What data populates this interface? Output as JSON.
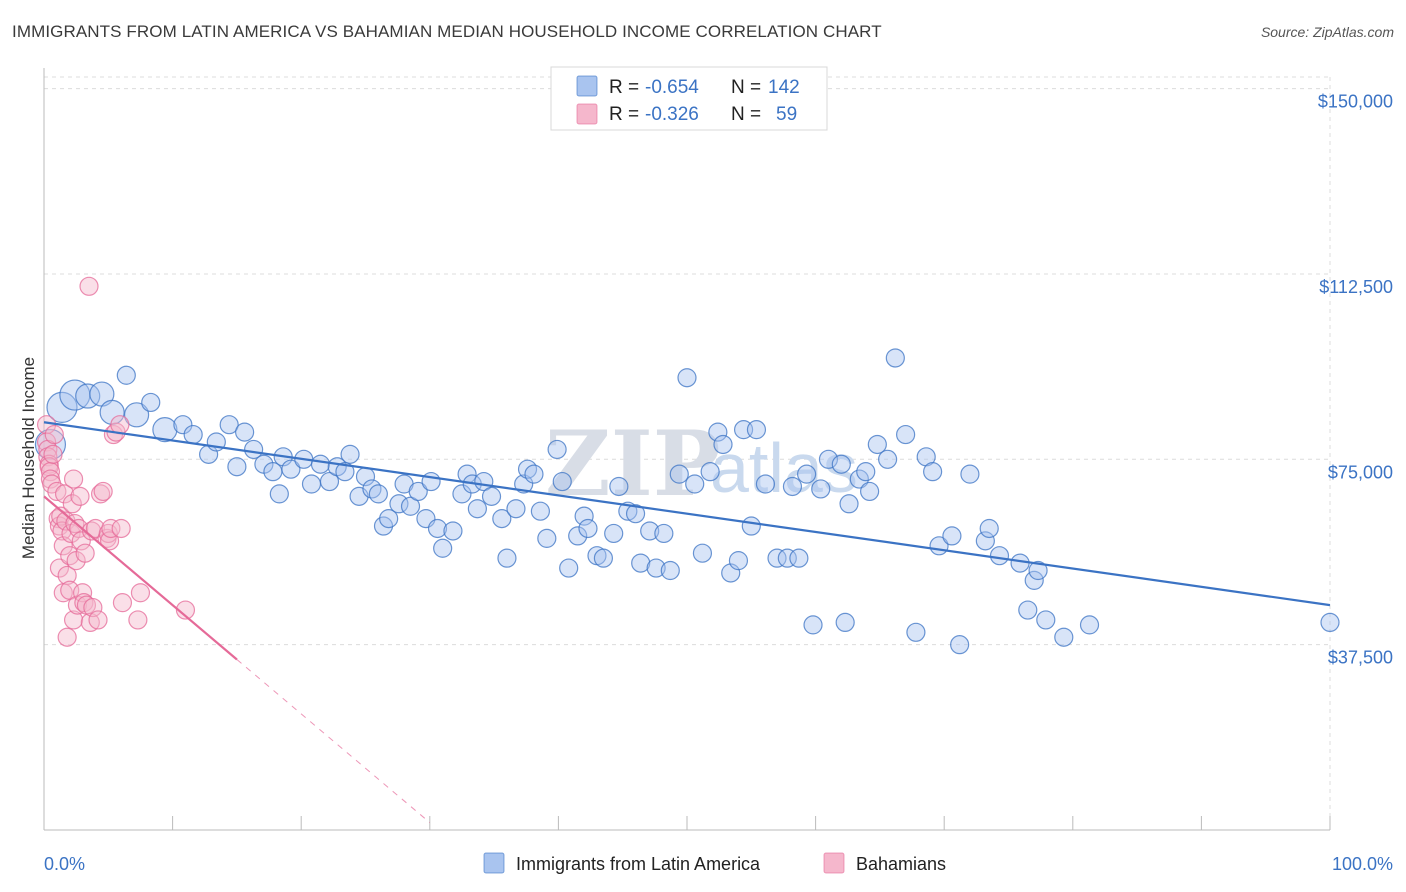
{
  "title": "IMMIGRANTS FROM LATIN AMERICA VS BAHAMIAN MEDIAN HOUSEHOLD INCOME CORRELATION CHART",
  "source": "Source: ZipAtlas.com",
  "watermark": {
    "zip": "ZIP",
    "atlas": "atlas"
  },
  "colors": {
    "blue": "#3b73c4",
    "blue_fill": "#a9c4ef",
    "pink": "#e56a98",
    "pink_fill": "#f5b7cc"
  },
  "chart_data": {
    "type": "scatter",
    "ylabel": "Median Household Income",
    "xlabel": "",
    "xlim": [
      0,
      100
    ],
    "ylim": [
      0,
      157000
    ],
    "x_tick_labels": [
      "0.0%",
      "100.0%"
    ],
    "y_ticks": [
      37500,
      75000,
      112500,
      150000
    ],
    "y_tick_labels": [
      "$37,500",
      "$75,000",
      "$112,500",
      "$150,000"
    ],
    "legend": {
      "placement": "top-center",
      "rows": [
        {
          "r_label": "R =",
          "r_value": "-0.654",
          "n_label": "N =",
          "n_value": "142"
        },
        {
          "r_label": "R =",
          "r_value": "-0.326",
          "n_label": "N =",
          "n_value": "59"
        }
      ]
    },
    "series": [
      {
        "name": "Immigrants from Latin America",
        "color": "#3b73c4",
        "trend": {
          "x": [
            0,
            100
          ],
          "y": [
            82500,
            45500
          ]
        },
        "points": [
          [
            0.5,
            78000,
            3
          ],
          [
            1.4,
            85500,
            3
          ],
          [
            2.4,
            88000,
            3
          ],
          [
            3.4,
            87800,
            2
          ],
          [
            4.5,
            88200,
            2
          ],
          [
            5.3,
            84500,
            2
          ],
          [
            6.4,
            92000,
            1
          ],
          [
            7.2,
            84000,
            2
          ],
          [
            8.3,
            86500,
            1
          ],
          [
            9.4,
            81000,
            2
          ],
          [
            10.8,
            82000,
            1
          ],
          [
            11.6,
            80000,
            1
          ],
          [
            12.8,
            76000,
            1
          ],
          [
            13.4,
            78500,
            1
          ],
          [
            14.4,
            82000,
            1
          ],
          [
            15.0,
            73500,
            1
          ],
          [
            15.6,
            80500,
            1
          ],
          [
            16.3,
            77000,
            1
          ],
          [
            17.1,
            74000,
            1
          ],
          [
            17.8,
            72500,
            1
          ],
          [
            18.3,
            68000,
            1
          ],
          [
            18.6,
            75500,
            1
          ],
          [
            19.2,
            73000,
            1
          ],
          [
            20.2,
            75000,
            1
          ],
          [
            20.8,
            70000,
            1
          ],
          [
            21.5,
            74000,
            1
          ],
          [
            22.2,
            70500,
            1
          ],
          [
            22.8,
            73500,
            1
          ],
          [
            23.4,
            72500,
            1
          ],
          [
            23.8,
            76000,
            1
          ],
          [
            24.5,
            67500,
            1
          ],
          [
            25.0,
            71500,
            1
          ],
          [
            25.5,
            69000,
            1
          ],
          [
            26.0,
            68000,
            1
          ],
          [
            26.4,
            61500,
            1
          ],
          [
            26.8,
            63000,
            1
          ],
          [
            27.6,
            66000,
            1
          ],
          [
            28.0,
            70000,
            1
          ],
          [
            28.5,
            65500,
            1
          ],
          [
            29.1,
            68500,
            1
          ],
          [
            29.7,
            63000,
            1
          ],
          [
            30.1,
            70500,
            1
          ],
          [
            30.6,
            61000,
            1
          ],
          [
            31.0,
            57000,
            1
          ],
          [
            31.8,
            60500,
            1
          ],
          [
            32.5,
            68000,
            1
          ],
          [
            32.9,
            72000,
            1
          ],
          [
            33.3,
            70000,
            1
          ],
          [
            33.7,
            65000,
            1
          ],
          [
            34.2,
            70500,
            1
          ],
          [
            34.8,
            67500,
            1
          ],
          [
            35.6,
            63000,
            1
          ],
          [
            36.0,
            55000,
            1
          ],
          [
            36.7,
            65000,
            1
          ],
          [
            37.3,
            70000,
            1
          ],
          [
            37.6,
            73000,
            1
          ],
          [
            38.1,
            72000,
            1
          ],
          [
            38.6,
            64500,
            1
          ],
          [
            39.1,
            59000,
            1
          ],
          [
            39.9,
            77000,
            1
          ],
          [
            40.3,
            70500,
            1
          ],
          [
            40.8,
            53000,
            1
          ],
          [
            41.5,
            59500,
            1
          ],
          [
            42.0,
            63500,
            1
          ],
          [
            42.3,
            61000,
            1
          ],
          [
            43.0,
            55500,
            1
          ],
          [
            43.5,
            55000,
            1
          ],
          [
            44.3,
            60000,
            1
          ],
          [
            44.7,
            69500,
            1
          ],
          [
            45.4,
            64500,
            1
          ],
          [
            46.0,
            64000,
            1
          ],
          [
            46.4,
            54000,
            1
          ],
          [
            47.1,
            60500,
            1
          ],
          [
            47.6,
            53000,
            1
          ],
          [
            48.2,
            60000,
            1
          ],
          [
            48.7,
            52500,
            1
          ],
          [
            49.4,
            72000,
            1
          ],
          [
            50.0,
            91500,
            1
          ],
          [
            50.6,
            70000,
            1
          ],
          [
            51.2,
            56000,
            1
          ],
          [
            51.8,
            72500,
            1
          ],
          [
            52.4,
            80500,
            1
          ],
          [
            52.8,
            78000,
            1
          ],
          [
            53.4,
            52000,
            1
          ],
          [
            54.0,
            54500,
            1
          ],
          [
            54.4,
            81000,
            1
          ],
          [
            55.0,
            61500,
            1
          ],
          [
            55.4,
            81000,
            1
          ],
          [
            56.1,
            70000,
            1
          ],
          [
            57.0,
            55000,
            1
          ],
          [
            57.8,
            55000,
            1
          ],
          [
            58.2,
            69500,
            1
          ],
          [
            58.7,
            55000,
            1
          ],
          [
            59.3,
            72000,
            1
          ],
          [
            59.8,
            41500,
            1
          ],
          [
            60.4,
            69000,
            1
          ],
          [
            61.0,
            75000,
            1
          ],
          [
            62.0,
            74000,
            1
          ],
          [
            62.3,
            42000,
            1
          ],
          [
            62.6,
            66000,
            1
          ],
          [
            63.4,
            71000,
            1
          ],
          [
            63.9,
            72500,
            1
          ],
          [
            64.2,
            68500,
            1
          ],
          [
            64.8,
            78000,
            1
          ],
          [
            65.6,
            75000,
            1
          ],
          [
            66.2,
            95500,
            1
          ],
          [
            67.0,
            80000,
            1
          ],
          [
            67.8,
            40000,
            1
          ],
          [
            68.6,
            75500,
            1
          ],
          [
            69.1,
            72500,
            1
          ],
          [
            69.6,
            57500,
            1
          ],
          [
            70.6,
            59500,
            1
          ],
          [
            71.2,
            37500,
            1
          ],
          [
            72.0,
            72000,
            1
          ],
          [
            73.2,
            58500,
            1
          ],
          [
            73.5,
            61000,
            1
          ],
          [
            74.3,
            55500,
            1
          ],
          [
            75.9,
            54000,
            1
          ],
          [
            76.5,
            44500,
            1
          ],
          [
            77.0,
            50500,
            1
          ],
          [
            77.3,
            52500,
            1
          ],
          [
            77.9,
            42500,
            1
          ],
          [
            79.3,
            39000,
            1
          ],
          [
            81.3,
            41500,
            1
          ],
          [
            100.0,
            42000,
            1
          ]
        ]
      },
      {
        "name": "Bahamians",
        "color": "#e56a98",
        "trend": {
          "x": [
            0,
            15.0
          ],
          "y": [
            67500,
            34500
          ]
        },
        "trend_extension": {
          "x": [
            15.0,
            30.0
          ],
          "y": [
            34500,
            1500
          ]
        },
        "points": [
          [
            0.2,
            82000,
            1
          ],
          [
            0.2,
            78500,
            1
          ],
          [
            0.3,
            77000,
            1
          ],
          [
            0.3,
            75500,
            1
          ],
          [
            0.4,
            74000,
            1
          ],
          [
            0.4,
            73500,
            1
          ],
          [
            0.5,
            72500,
            1
          ],
          [
            0.5,
            71000,
            1
          ],
          [
            0.6,
            70000,
            1
          ],
          [
            0.7,
            76000,
            1
          ],
          [
            0.8,
            80000,
            1
          ],
          [
            1.0,
            68500,
            1
          ],
          [
            1.1,
            63000,
            1
          ],
          [
            1.2,
            61500,
            1
          ],
          [
            1.2,
            53000,
            1
          ],
          [
            1.3,
            63500,
            1
          ],
          [
            1.4,
            60500,
            1
          ],
          [
            1.5,
            57500,
            1
          ],
          [
            1.5,
            48000,
            1
          ],
          [
            1.6,
            68000,
            1
          ],
          [
            1.7,
            62500,
            1
          ],
          [
            1.8,
            51500,
            1
          ],
          [
            1.8,
            39000,
            1
          ],
          [
            2.0,
            55500,
            1
          ],
          [
            2.0,
            48500,
            1
          ],
          [
            2.1,
            60000,
            1
          ],
          [
            2.2,
            66000,
            1
          ],
          [
            2.3,
            71000,
            1
          ],
          [
            2.3,
            42500,
            1
          ],
          [
            2.4,
            62000,
            1
          ],
          [
            2.5,
            54500,
            1
          ],
          [
            2.6,
            45500,
            1
          ],
          [
            2.7,
            61000,
            1
          ],
          [
            2.8,
            67500,
            1
          ],
          [
            2.9,
            58500,
            1
          ],
          [
            3.0,
            48000,
            1
          ],
          [
            3.1,
            46000,
            1
          ],
          [
            3.2,
            56000,
            1
          ],
          [
            3.3,
            45500,
            1
          ],
          [
            3.5,
            110000,
            1
          ],
          [
            3.6,
            42000,
            1
          ],
          [
            3.7,
            60500,
            1
          ],
          [
            3.8,
            45000,
            1
          ],
          [
            4.0,
            61000,
            1
          ],
          [
            4.2,
            42500,
            1
          ],
          [
            4.4,
            68000,
            1
          ],
          [
            4.6,
            68500,
            1
          ],
          [
            4.9,
            59000,
            1
          ],
          [
            5.0,
            60000,
            1
          ],
          [
            5.1,
            58500,
            1
          ],
          [
            5.2,
            61000,
            1
          ],
          [
            5.4,
            80000,
            1
          ],
          [
            5.6,
            80500,
            1
          ],
          [
            5.9,
            82000,
            1
          ],
          [
            6.0,
            61000,
            1
          ],
          [
            6.1,
            46000,
            1
          ],
          [
            7.3,
            42500,
            1
          ],
          [
            7.5,
            48000,
            1
          ],
          [
            11.0,
            44500,
            1
          ]
        ]
      }
    ]
  }
}
